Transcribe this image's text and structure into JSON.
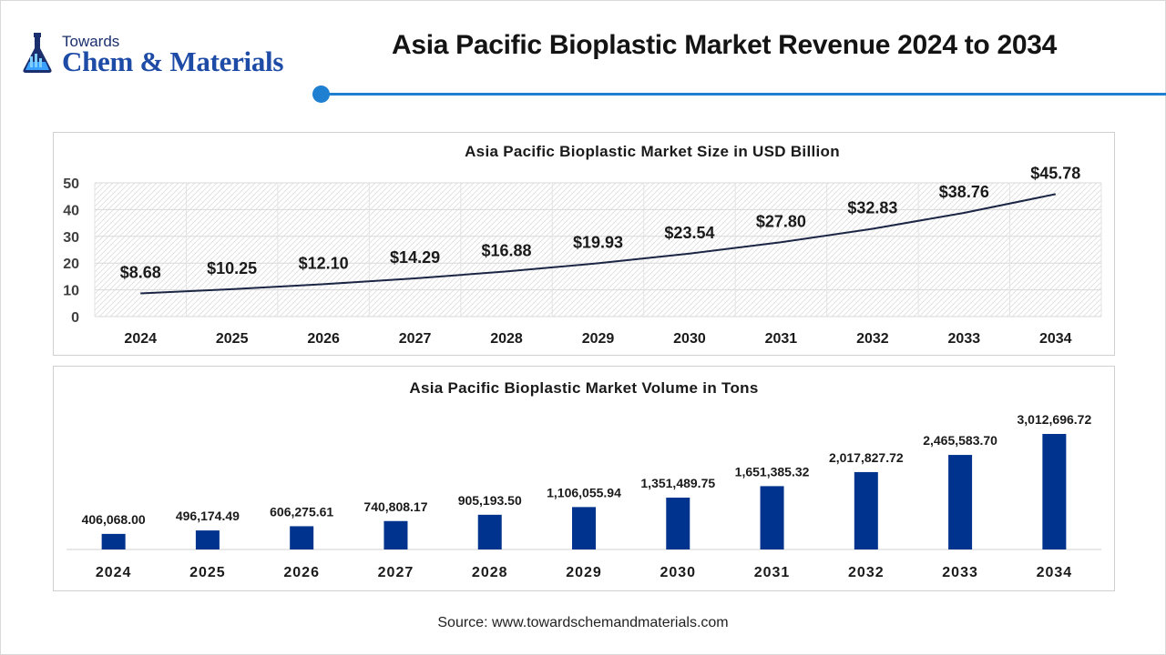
{
  "header": {
    "logo_small": "Towards",
    "logo_big": "Chem & Materials",
    "title": "Asia Pacific Bioplastic Market Revenue 2024 to 2034"
  },
  "colors": {
    "accent": "#1f7fd1",
    "bar": "#00338d",
    "line": "#1b2544"
  },
  "source": "Source: www.towardschemandmaterials.com",
  "chart_data": [
    {
      "type": "line",
      "title": "Asia Pacific Bioplastic Market Size in USD Billion",
      "categories": [
        "2024",
        "2025",
        "2026",
        "2027",
        "2028",
        "2029",
        "2030",
        "2031",
        "2032",
        "2033",
        "2034"
      ],
      "values": [
        8.68,
        10.25,
        12.1,
        14.29,
        16.88,
        19.93,
        23.54,
        27.8,
        32.83,
        38.76,
        45.78
      ],
      "data_labels": [
        "$8.68",
        "$10.25",
        "$12.10",
        "$14.29",
        "$16.88",
        "$19.93",
        "$23.54",
        "$27.80",
        "$32.83",
        "$38.76",
        "$45.78"
      ],
      "yticks": [
        "0",
        "10",
        "20",
        "30",
        "40",
        "50"
      ],
      "ylim": [
        0,
        50
      ],
      "grid": true
    },
    {
      "type": "bar",
      "title": "Asia Pacific Bioplastic Market Volume in Tons",
      "categories": [
        "2024",
        "2025",
        "2026",
        "2027",
        "2028",
        "2029",
        "2030",
        "2031",
        "2032",
        "2033",
        "2034"
      ],
      "values": [
        406068.0,
        496174.49,
        606275.61,
        740808.17,
        905193.5,
        1106055.94,
        1351489.75,
        1651385.32,
        2017827.72,
        2465583.7,
        3012696.72
      ],
      "data_labels": [
        "406,068.00",
        "496,174.49",
        "606,275.61",
        "740,808.17",
        "905,193.50",
        "1,106,055.94",
        "1,351,489.75",
        "1,651,385.32",
        "2,017,827.72",
        "2,465,583.70",
        "3,012,696.72"
      ],
      "grid": false
    }
  ]
}
